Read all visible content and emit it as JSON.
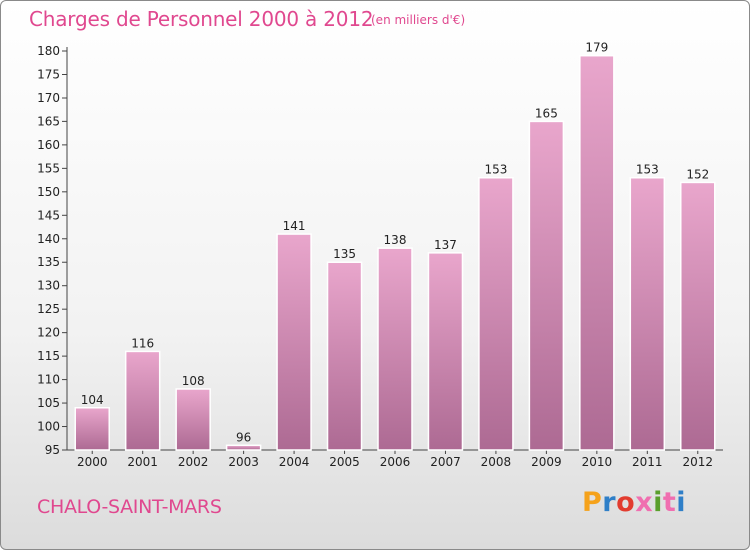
{
  "header": {
    "title": "Charges de Personnel 2000 à 2012",
    "subtitle": "(en milliers d'€)"
  },
  "footer": {
    "commune": "CHALO-SAINT-MARS",
    "logo_text": "Proxiti",
    "logo_colors": [
      "#f5a21b",
      "#2f7fc8",
      "#e23c2f",
      "#f06fb0",
      "#5a9f2c",
      "#f06fb0",
      "#2f7fc8"
    ]
  },
  "colors": {
    "accent": "#e0488f",
    "bar_top": "#e9a6cc",
    "bar_bottom": "#ad6a93"
  },
  "chart_data": {
    "type": "bar",
    "categories": [
      "2000",
      "2001",
      "2002",
      "2003",
      "2004",
      "2005",
      "2006",
      "2007",
      "2008",
      "2009",
      "2010",
      "2011",
      "2012"
    ],
    "values": [
      104,
      116,
      108,
      96,
      141,
      135,
      138,
      137,
      153,
      165,
      179,
      153,
      152
    ],
    "ylim": [
      95,
      180
    ],
    "yticks": [
      95,
      100,
      105,
      110,
      115,
      120,
      125,
      130,
      135,
      140,
      145,
      150,
      155,
      160,
      165,
      170,
      175,
      180
    ],
    "grid": false,
    "data_labels": true
  }
}
